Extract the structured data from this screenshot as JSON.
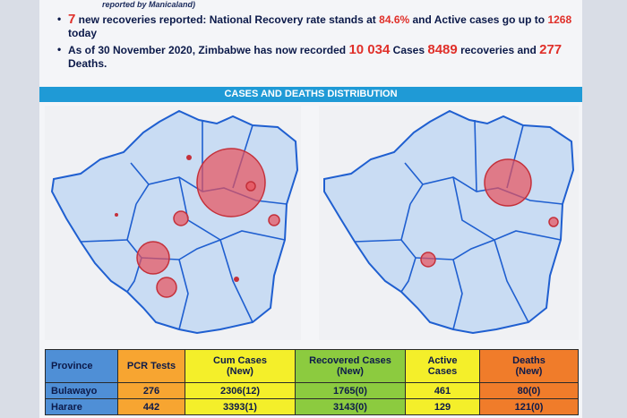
{
  "header_note": "reported by Manicaland)",
  "bullets": [
    {
      "n": "7",
      "t1": " new recoveries reported: National Recovery rate stands at ",
      "rate": "84.6%",
      "t2": " and Active cases go up to ",
      "active": "1268",
      "t3": " today"
    },
    {
      "t1": "As of 30 November 2020, Zimbabwe has now recorded ",
      "cases": "10 034",
      "t2": " Cases ",
      "recoveries": "8489",
      "t3": " recoveries and ",
      "deaths": "277",
      "t4": " Deaths."
    }
  ],
  "banner": "CASES AND DEATHS DISTRIBUTION",
  "colors": {
    "banner": "#1f9ad6",
    "map_fill": "#c9dcf3",
    "map_border": "#1f5fd0",
    "bubble": "#e8505a"
  },
  "table": {
    "headers": {
      "province": "Province",
      "pcr": "PCR Tests",
      "cum": "Cum Cases",
      "cum_sub": "(New)",
      "rec": "Recovered Cases",
      "rec_sub": "(New)",
      "act": "Active",
      "act_sub": "Cases",
      "dth": "Deaths",
      "dth_sub": "(New)"
    },
    "rows": [
      {
        "province": "Bulawayo",
        "pcr": "276",
        "cum": "2306(12)",
        "rec": "1765(0)",
        "act": "461",
        "dth": "80(0)"
      },
      {
        "province": "Harare",
        "pcr": "442",
        "cum": "3393(1)",
        "rec": "3143(0)",
        "act": "129",
        "dth": "121(0)"
      }
    ]
  }
}
